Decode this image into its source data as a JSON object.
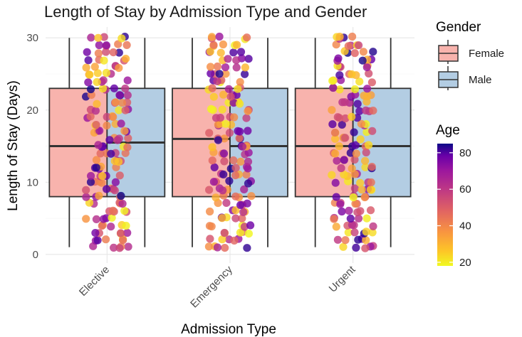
{
  "chart_data": {
    "type": "boxplot",
    "title": "Length of Stay by Admission Type and Gender",
    "xlabel": "Admission Type",
    "ylabel": "Length of Stay (Days)",
    "categories": [
      "Elective",
      "Emergency",
      "Urgent"
    ],
    "y_ticks": [
      "0",
      "10",
      "20",
      "30"
    ],
    "ylim": [
      -1.2,
      31.5
    ],
    "grid": true,
    "group_legend": {
      "title": "Gender",
      "position": "right",
      "items": [
        {
          "name": "Female",
          "color": "#F8B3AD"
        },
        {
          "name": "Male",
          "color": "#B3CDE3"
        }
      ]
    },
    "color_legend": {
      "title": "Age",
      "position": "right",
      "ticks": [
        "20",
        "40",
        "60",
        "80"
      ],
      "range": [
        18,
        85
      ],
      "palette": "plasma"
    },
    "series": [
      {
        "name": "Female",
        "color": "#F8B3AD",
        "boxes": [
          {
            "category": "Elective",
            "min": 1,
            "q1": 8,
            "median": 15,
            "q3": 23,
            "max": 30
          },
          {
            "category": "Emergency",
            "min": 1,
            "q1": 8,
            "median": 16,
            "q3": 23,
            "max": 30
          },
          {
            "category": "Urgent",
            "min": 1,
            "q1": 8,
            "median": 15,
            "q3": 23,
            "max": 30
          }
        ]
      },
      {
        "name": "Male",
        "color": "#B3CDE3",
        "boxes": [
          {
            "category": "Elective",
            "min": 1,
            "q1": 8,
            "median": 15.5,
            "q3": 23,
            "max": 30
          },
          {
            "category": "Emergency",
            "min": 1,
            "q1": 8,
            "median": 15,
            "q3": 23,
            "max": 30
          },
          {
            "category": "Urgent",
            "min": 1,
            "q1": 8,
            "median": 15,
            "q3": 23,
            "max": 30
          }
        ]
      }
    ],
    "points": {
      "description_of_encoding": "jittered integer stays 1-30, color = Age",
      "y_range": [
        1,
        30
      ],
      "age_range": [
        18,
        85
      ]
    }
  }
}
